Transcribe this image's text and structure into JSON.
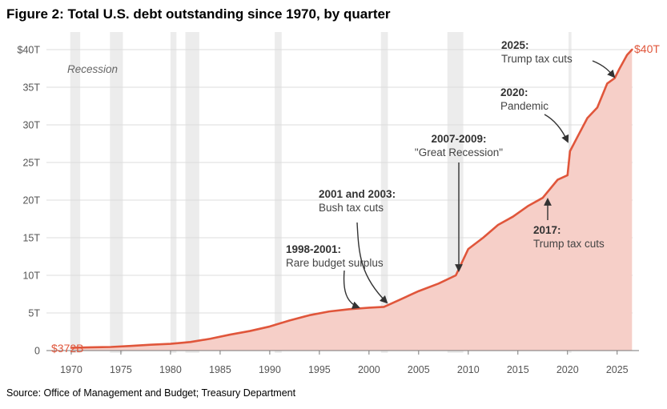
{
  "title": "Figure 2: Total U.S. debt outstanding since 1970, by quarter",
  "source": "Source: Office of Management and Budget; Treasury Department",
  "colors": {
    "line": "#e0563b",
    "area": "#f6cfc8",
    "recession": "#ececec",
    "grid": "#dddddd",
    "arrow": "#333333"
  },
  "chart_data": {
    "type": "area",
    "title": "Total U.S. debt outstanding since 1970, by quarter",
    "xlabel": "",
    "ylabel": "",
    "xlim": [
      1967.5,
      2027.2
    ],
    "ylim": [
      0,
      40
    ],
    "grid": true,
    "y_unit": "trillions of dollars",
    "x_ticks": [
      1970,
      1975,
      1980,
      1985,
      1990,
      1995,
      2000,
      2005,
      2010,
      2015,
      2020,
      2025
    ],
    "x_tick_labels": [
      "1970",
      "1975",
      "1980",
      "1985",
      "1990",
      "1995",
      "2000",
      "2005",
      "2010",
      "2015",
      "2020",
      "2025"
    ],
    "y_ticks": [
      0,
      5,
      10,
      15,
      20,
      25,
      30,
      35,
      40
    ],
    "y_tick_labels": [
      "0",
      "5T",
      "10T",
      "15T",
      "20T",
      "25T",
      "30T",
      "35T",
      "$40T"
    ],
    "series": [
      {
        "name": "Total U.S. debt outstanding",
        "x": [
          1970,
          1972,
          1974,
          1976,
          1978,
          1980,
          1982,
          1984,
          1986,
          1988,
          1990,
          1992,
          1994,
          1996,
          1998,
          2000,
          2001.5,
          2003,
          2005,
          2007,
          2008.75,
          2010,
          2011.5,
          2013,
          2014.5,
          2016,
          2017.5,
          2019,
          2020,
          2020.25,
          2021,
          2022,
          2023,
          2024,
          2024.75,
          2025.25,
          2026,
          2026.5
        ],
        "y": [
          0.372,
          0.43,
          0.48,
          0.62,
          0.78,
          0.9,
          1.14,
          1.57,
          2.12,
          2.6,
          3.2,
          4.0,
          4.7,
          5.2,
          5.5,
          5.7,
          5.8,
          6.7,
          7.9,
          8.9,
          10.0,
          13.5,
          15.0,
          16.7,
          17.8,
          19.2,
          20.3,
          22.7,
          23.3,
          26.5,
          28.4,
          30.9,
          32.3,
          35.5,
          36.2,
          37.5,
          39.3,
          40.0
        ]
      }
    ],
    "recessions": [
      [
        1969.9,
        1970.9
      ],
      [
        1973.9,
        1975.2
      ],
      [
        1980.0,
        1980.6
      ],
      [
        1981.5,
        1982.9
      ],
      [
        1990.5,
        1991.2
      ],
      [
        2001.2,
        2001.9
      ],
      [
        2007.9,
        2009.5
      ],
      [
        2020.1,
        2020.4
      ]
    ],
    "recession_label": "Recession",
    "start_label": "$372B",
    "end_label": "$40T",
    "annotations": [
      {
        "title": "1998-2001:",
        "text": "Rare budget surplus",
        "target": [
          1998,
          5.5
        ]
      },
      {
        "title": "2001 and 2003:",
        "text": "Bush tax cuts",
        "target": [
          2001.2,
          5.8
        ]
      },
      {
        "title": "2007-2009:",
        "text": "\"Great Recession\"",
        "target": [
          2008.7,
          9.9
        ]
      },
      {
        "title": "2017:",
        "text": "Trump tax cuts",
        "target": [
          2018.1,
          20.6
        ]
      },
      {
        "title": "2020:",
        "text": "Pandemic",
        "target": [
          2020.1,
          27.0
        ]
      },
      {
        "title": "2025:",
        "text": "Trump tax cuts",
        "target": [
          2025.0,
          36.5
        ]
      }
    ]
  }
}
